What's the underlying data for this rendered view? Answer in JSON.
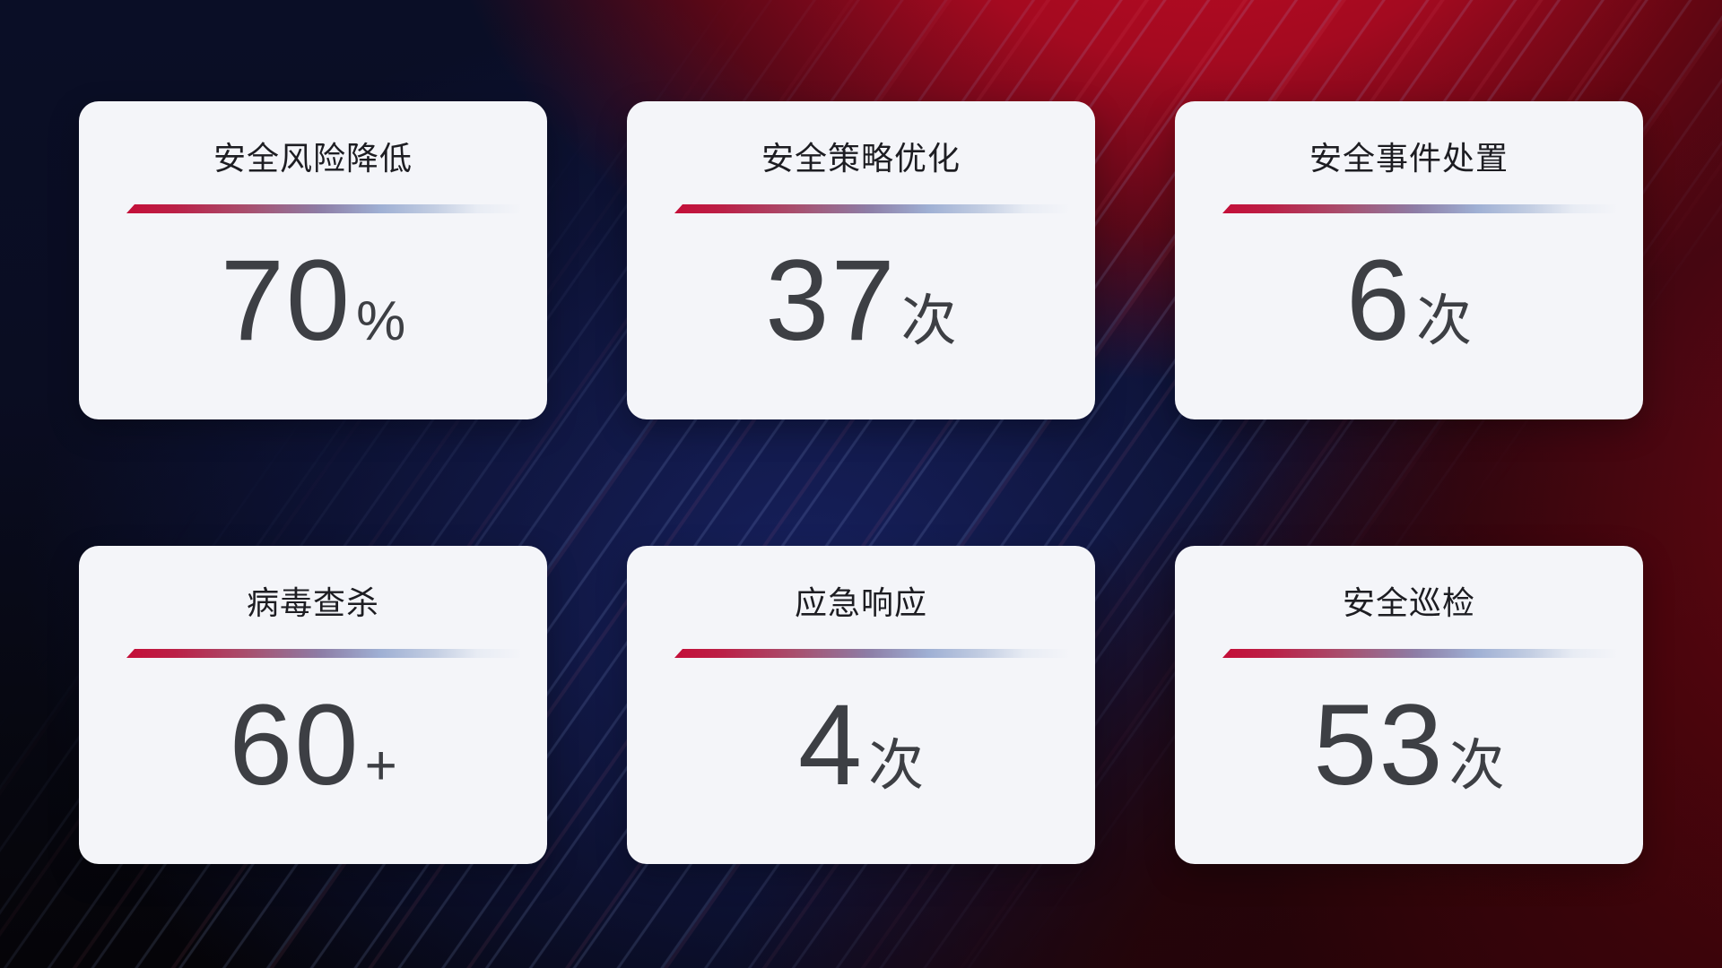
{
  "cards": [
    {
      "title": "安全风险降低",
      "value": "70",
      "suffix": "%"
    },
    {
      "title": "安全策略优化",
      "value": "37",
      "suffix": "次"
    },
    {
      "title": "安全事件处置",
      "value": "6",
      "suffix": "次"
    },
    {
      "title": "病毒查杀",
      "value": "60",
      "suffix": "+"
    },
    {
      "title": "应急响应",
      "value": "4",
      "suffix": "次"
    },
    {
      "title": "安全巡检",
      "value": "53",
      "suffix": "次"
    }
  ],
  "colors": {
    "card_background": "#f4f5f9",
    "title_text": "#1d1d22",
    "value_text": "#3d3f44",
    "divider_start": "#c40e38",
    "divider_mid": "#8d7da6",
    "divider_end": "#c2cde2",
    "background_navy": "#0d1340",
    "background_red": "#b00c22",
    "background_dark_maroon": "#2d0509",
    "background_black": "#050408"
  }
}
